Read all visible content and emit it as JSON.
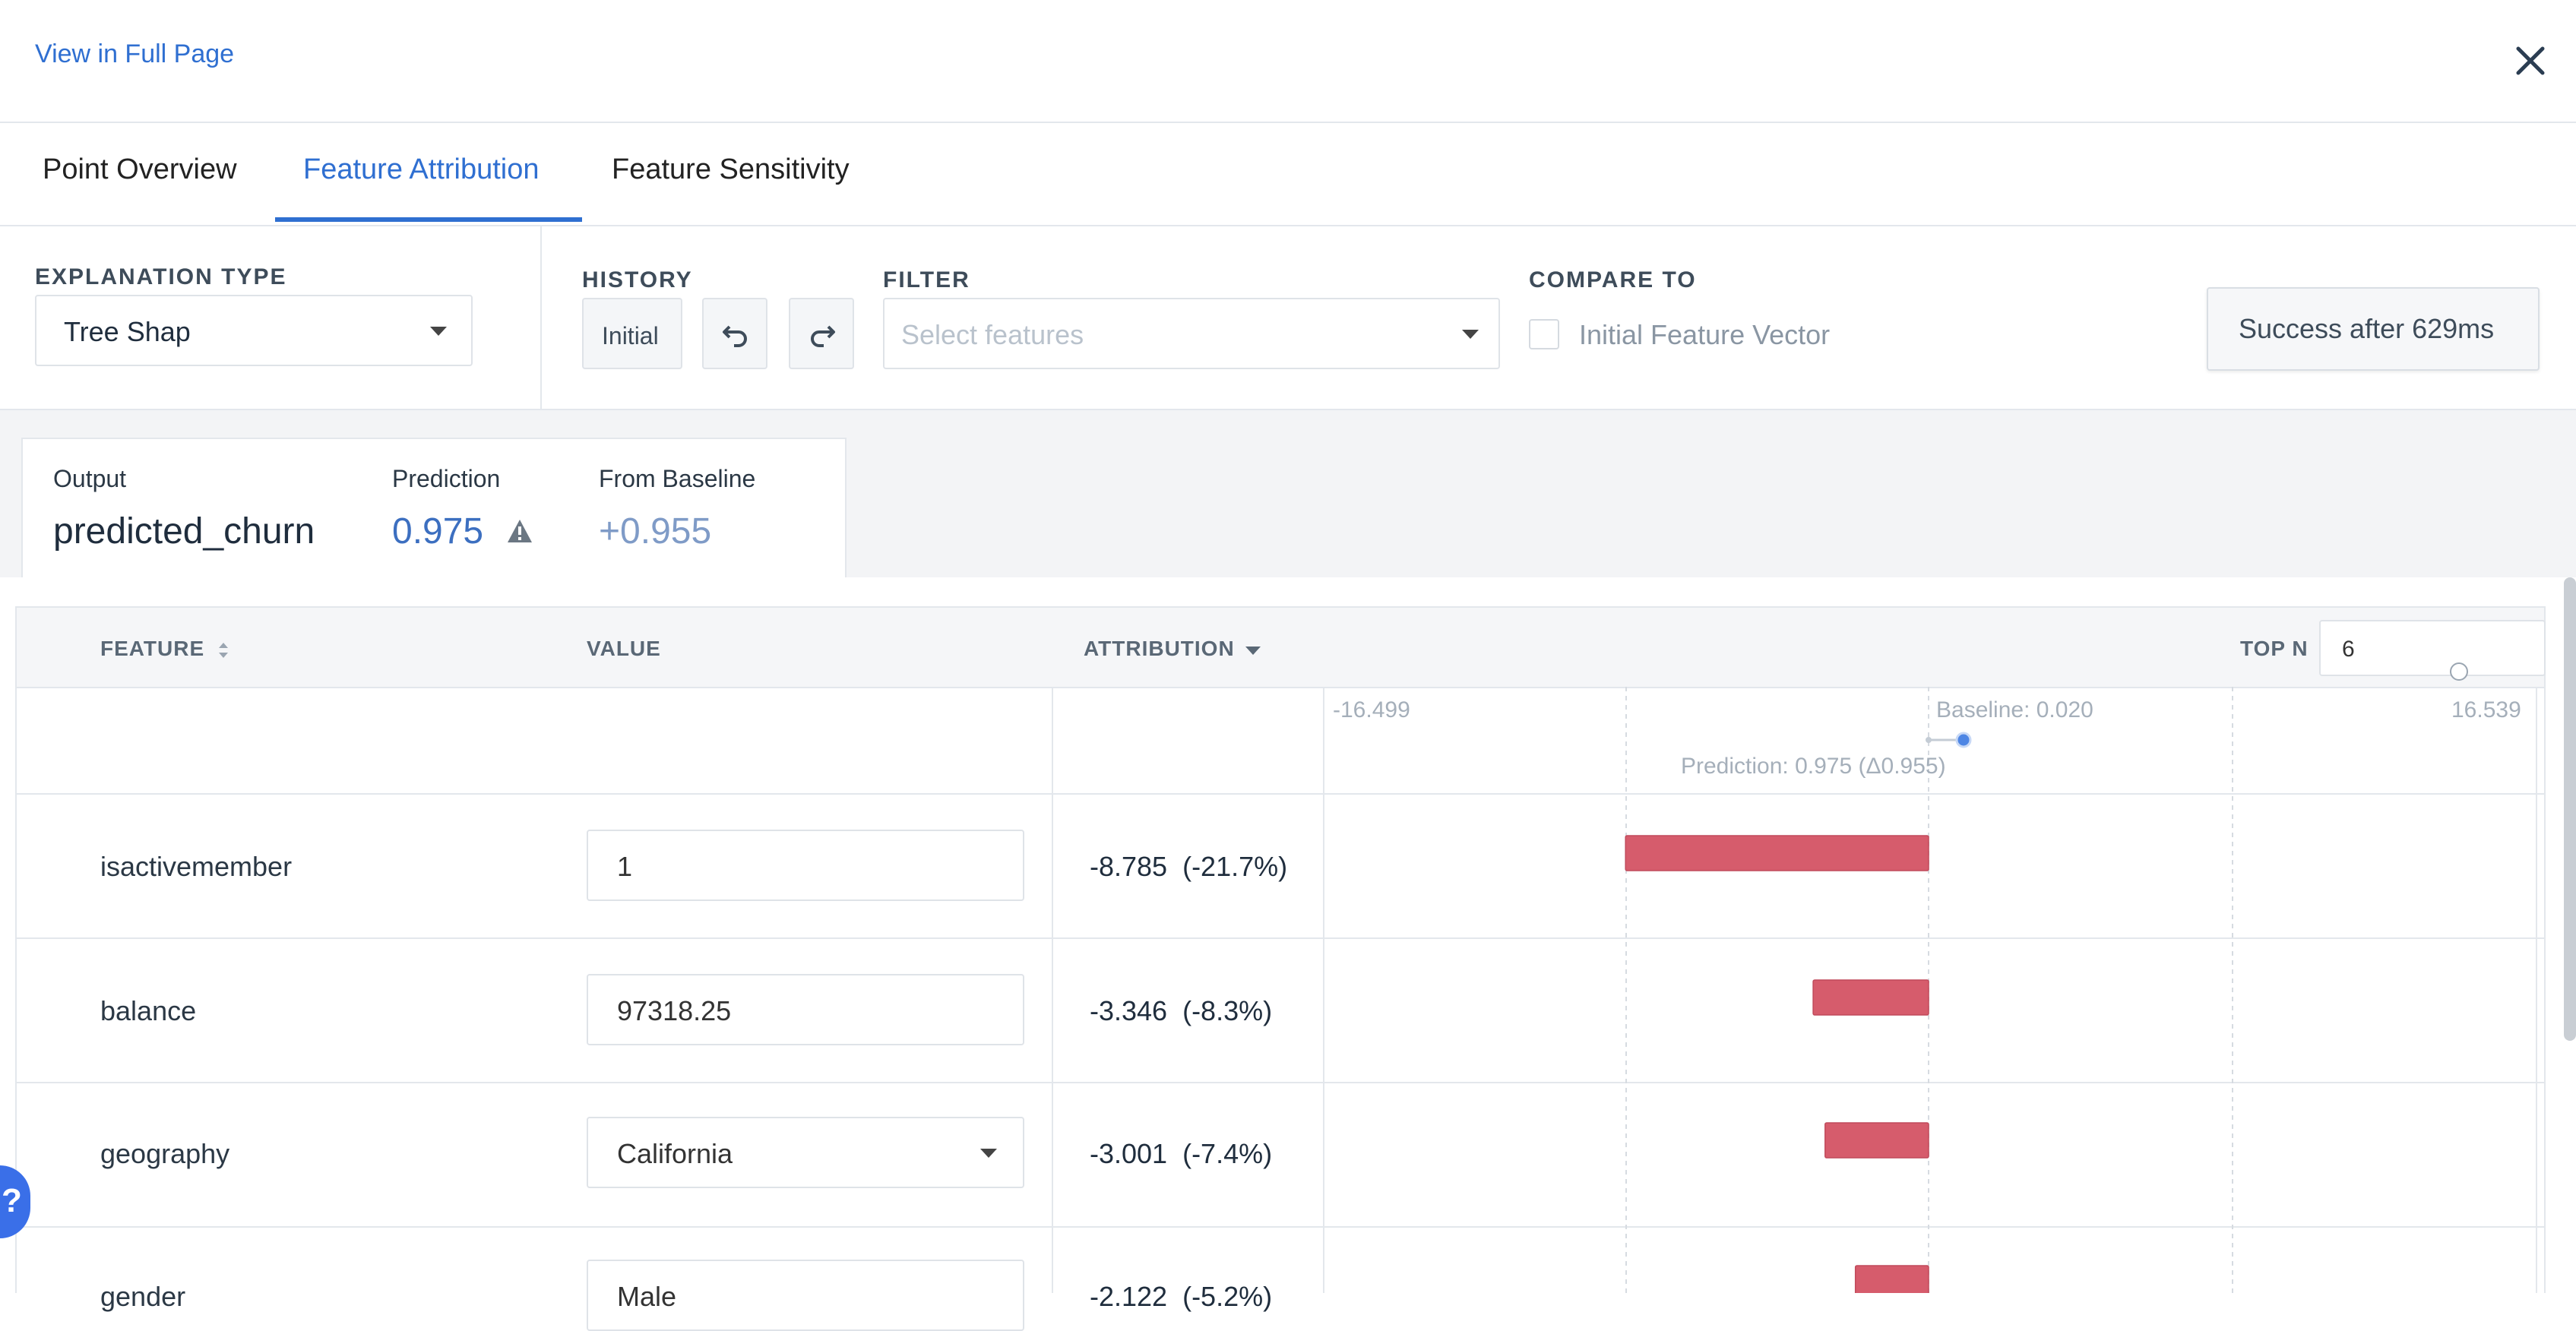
{
  "header": {
    "view_full_page": "View in Full Page",
    "close_icon": "close-icon"
  },
  "tabs": [
    {
      "label": "Point Overview",
      "active": false
    },
    {
      "label": "Feature Attribution",
      "active": true
    },
    {
      "label": "Feature Sensitivity",
      "active": false
    }
  ],
  "controls": {
    "explanation_type_label": "EXPLANATION TYPE",
    "explanation_type_value": "Tree Shap",
    "history_label": "HISTORY",
    "history_initial": "Initial",
    "undo_icon": "undo-icon",
    "redo_icon": "redo-icon",
    "filter_label": "FILTER",
    "filter_placeholder": "Select features",
    "compare_label": "COMPARE TO",
    "compare_option": "Initial Feature Vector",
    "compare_checked": false,
    "status": "Success after 629ms"
  },
  "summary": {
    "output_label": "Output",
    "output_value": "predicted_churn",
    "prediction_label": "Prediction",
    "prediction_value": "0.975",
    "warning_icon": "warning-icon",
    "baseline_label": "From Baseline",
    "baseline_value": "+0.955"
  },
  "table": {
    "headers": {
      "feature": "FEATURE",
      "value": "VALUE",
      "attribution": "ATTRIBUTION",
      "top_n": "TOP N"
    },
    "top_n_value": "6",
    "axis": {
      "min_label": "-16.499",
      "max_label": "16.539",
      "baseline_label": "Baseline: 0.020",
      "prediction_label": "Prediction: 0.975 (Δ0.955)"
    },
    "rows": [
      {
        "feature": "isactivemember",
        "value": "1",
        "attribution": "-8.785  (-21.7%)",
        "type": "input"
      },
      {
        "feature": "balance",
        "value": "97318.25",
        "attribution": "-3.346  (-8.3%)",
        "type": "input"
      },
      {
        "feature": "geography",
        "value": "California",
        "attribution": "-3.001  (-7.4%)",
        "type": "select"
      },
      {
        "feature": "gender",
        "value": "Male",
        "attribution": "-2.122  (-5.2%)",
        "type": "select"
      }
    ]
  },
  "colors": {
    "accent": "#2f6fd1",
    "negative_bar": "#d65c6c",
    "warning": "#6b7783"
  },
  "chart_data": {
    "type": "bar",
    "categories": [
      "isactivemember",
      "balance",
      "geography",
      "gender"
    ],
    "values": [
      -8.785,
      -3.346,
      -3.001,
      -2.122
    ],
    "xlim": [
      -16.499,
      16.539
    ],
    "baseline": 0.02,
    "prediction": 0.975
  }
}
